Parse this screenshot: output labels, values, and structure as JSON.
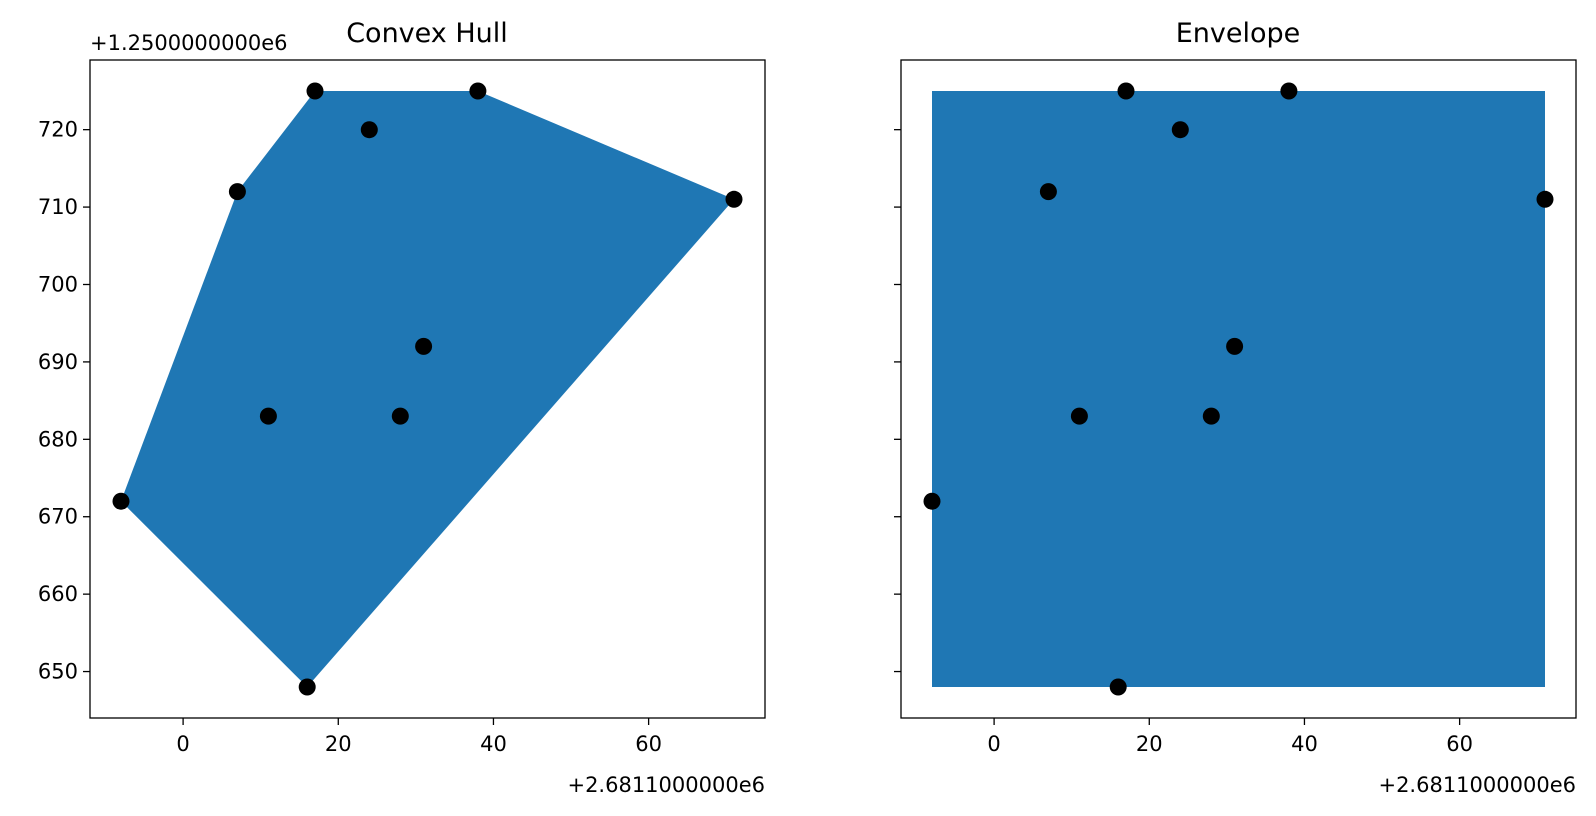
{
  "chart_data": [
    {
      "type": "scatter",
      "title": "Convex Hull",
      "shape": "convex-hull",
      "fill_color": "#1f77b4",
      "point_color": "#000000",
      "x_offset_label": "+2.6811000000e6",
      "y_offset_label": "+1.2500000000e6",
      "xlim": [
        -12,
        75
      ],
      "ylim": [
        644,
        729
      ],
      "xticks": [
        0,
        20,
        40,
        60
      ],
      "yticks": [
        650,
        660,
        670,
        680,
        690,
        700,
        710,
        720
      ],
      "show_ytick_labels": true,
      "hull": [
        [
          -8,
          672
        ],
        [
          16,
          648
        ],
        [
          71,
          711
        ],
        [
          38,
          725
        ],
        [
          17,
          725
        ],
        [
          7,
          712
        ]
      ],
      "points": [
        {
          "x": 17,
          "y": 725
        },
        {
          "x": 38,
          "y": 725
        },
        {
          "x": 24,
          "y": 720
        },
        {
          "x": 7,
          "y": 712
        },
        {
          "x": 71,
          "y": 711
        },
        {
          "x": 31,
          "y": 692
        },
        {
          "x": 11,
          "y": 683
        },
        {
          "x": 28,
          "y": 683
        },
        {
          "x": -8,
          "y": 672
        },
        {
          "x": 16,
          "y": 648
        }
      ]
    },
    {
      "type": "scatter",
      "title": "Envelope",
      "shape": "envelope",
      "fill_color": "#1f77b4",
      "point_color": "#000000",
      "x_offset_label": "+2.6811000000e6",
      "y_offset_label": "",
      "xlim": [
        -12,
        75
      ],
      "ylim": [
        644,
        729
      ],
      "xticks": [
        0,
        20,
        40,
        60
      ],
      "yticks": [
        650,
        660,
        670,
        680,
        690,
        700,
        710,
        720
      ],
      "show_ytick_labels": false,
      "hull": [
        [
          -8,
          648
        ],
        [
          71,
          648
        ],
        [
          71,
          725
        ],
        [
          -8,
          725
        ]
      ],
      "points": [
        {
          "x": 17,
          "y": 725
        },
        {
          "x": 38,
          "y": 725
        },
        {
          "x": 24,
          "y": 720
        },
        {
          "x": 7,
          "y": 712
        },
        {
          "x": 71,
          "y": 711
        },
        {
          "x": 31,
          "y": 692
        },
        {
          "x": 11,
          "y": 683
        },
        {
          "x": 28,
          "y": 683
        },
        {
          "x": -8,
          "y": 672
        },
        {
          "x": 16,
          "y": 648
        }
      ]
    }
  ]
}
